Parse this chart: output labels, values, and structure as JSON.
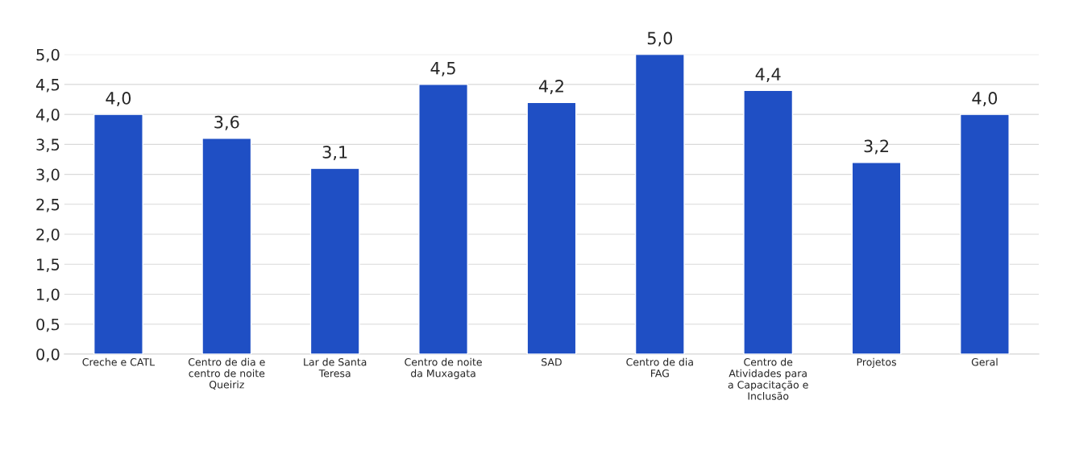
{
  "chart_data": {
    "type": "bar",
    "categories": [
      "Creche e CATL",
      "Centro de dia e\ncentro de noite\nQueiriz",
      "Lar de Santa\nTeresa",
      "Centro de noite\nda Muxagata",
      "SAD",
      "Centro de dia\nFAG",
      "Centro de\nAtividades para\na Capacitação e\nInclusão",
      "Projetos",
      "Geral"
    ],
    "values": [
      4.0,
      3.6,
      3.1,
      4.5,
      4.2,
      5.0,
      4.4,
      3.2,
      4.0
    ],
    "value_labels": [
      "4,0",
      "3,6",
      "3,1",
      "4,5",
      "4,2",
      "5,0",
      "4,4",
      "3,2",
      "4,0"
    ],
    "color": "#1f4fc4",
    "ylim": [
      0,
      5
    ],
    "yticks": [
      {
        "value": 0,
        "label": "0,0"
      },
      {
        "value": 0.5,
        "label": "0,5"
      },
      {
        "value": 1,
        "label": "1,0"
      },
      {
        "value": 1.5,
        "label": "1,5"
      },
      {
        "value": 2,
        "label": "2,0"
      },
      {
        "value": 2.5,
        "label": "2,5"
      },
      {
        "value": 3,
        "label": "3,0"
      },
      {
        "value": 3.5,
        "label": "3,5"
      },
      {
        "value": 4,
        "label": "4,0"
      },
      {
        "value": 4.5,
        "label": "4,5"
      },
      {
        "value": 5,
        "label": "5,0"
      }
    ],
    "grid": "y"
  }
}
